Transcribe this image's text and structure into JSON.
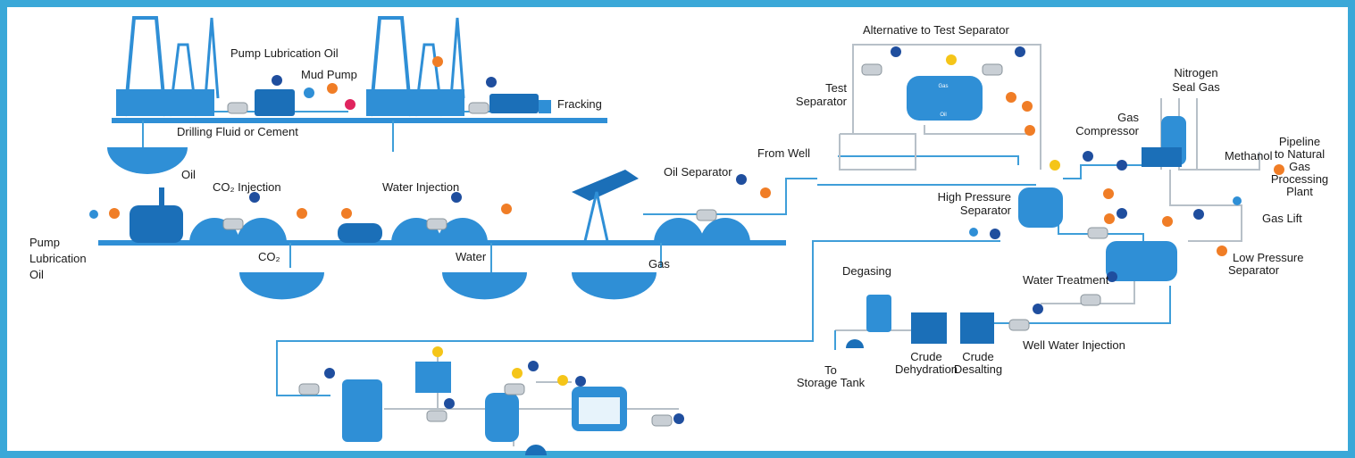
{
  "labels": {
    "pump_lubrication_oil_top": "Pump Lubrication Oil",
    "mud_pump": "Mud Pump",
    "drilling_fluid": "Drilling Fluid or Cement",
    "fracking": "Fracking",
    "oil": "Oil",
    "co2_injection": "CO₂ Injection",
    "water_injection": "Water Injection",
    "pump_lubrication_oil_left": [
      "Pump",
      "Lubrication",
      "Oil"
    ],
    "co2": "CO₂",
    "water": "Water",
    "gas": "Gas",
    "oil_separator": "Oil Separator",
    "from_well": "From Well",
    "alternative_to_test_separator": "Alternative to Test Separator",
    "test_separator": [
      "Test",
      "Separator"
    ],
    "nitrogen_seal_gas": [
      "Nitrogen",
      "Seal Gas"
    ],
    "gas_compressor": [
      "Gas",
      "Compressor"
    ],
    "methanol": "Methanol",
    "pipeline": [
      "Pipeline",
      "to Natural",
      "Gas",
      "Processing",
      "Plant"
    ],
    "high_pressure_separator": [
      "High Pressure",
      "Separator"
    ],
    "gas_lift": "Gas Lift",
    "low_pressure_separator": [
      "Low Pressure",
      "Separator"
    ],
    "water_treatment": "Water Treatment",
    "degasing": "Degasing",
    "crude_dehydration": [
      "Crude",
      "Dehydration"
    ],
    "crude_desalting": [
      "Crude",
      "Desalting"
    ],
    "well_water_injection": "Well Water Injection",
    "to_storage_tank": [
      "To",
      "Storage Tank"
    ],
    "tank_gas": "Gas",
    "tank_oil": "Oil"
  }
}
